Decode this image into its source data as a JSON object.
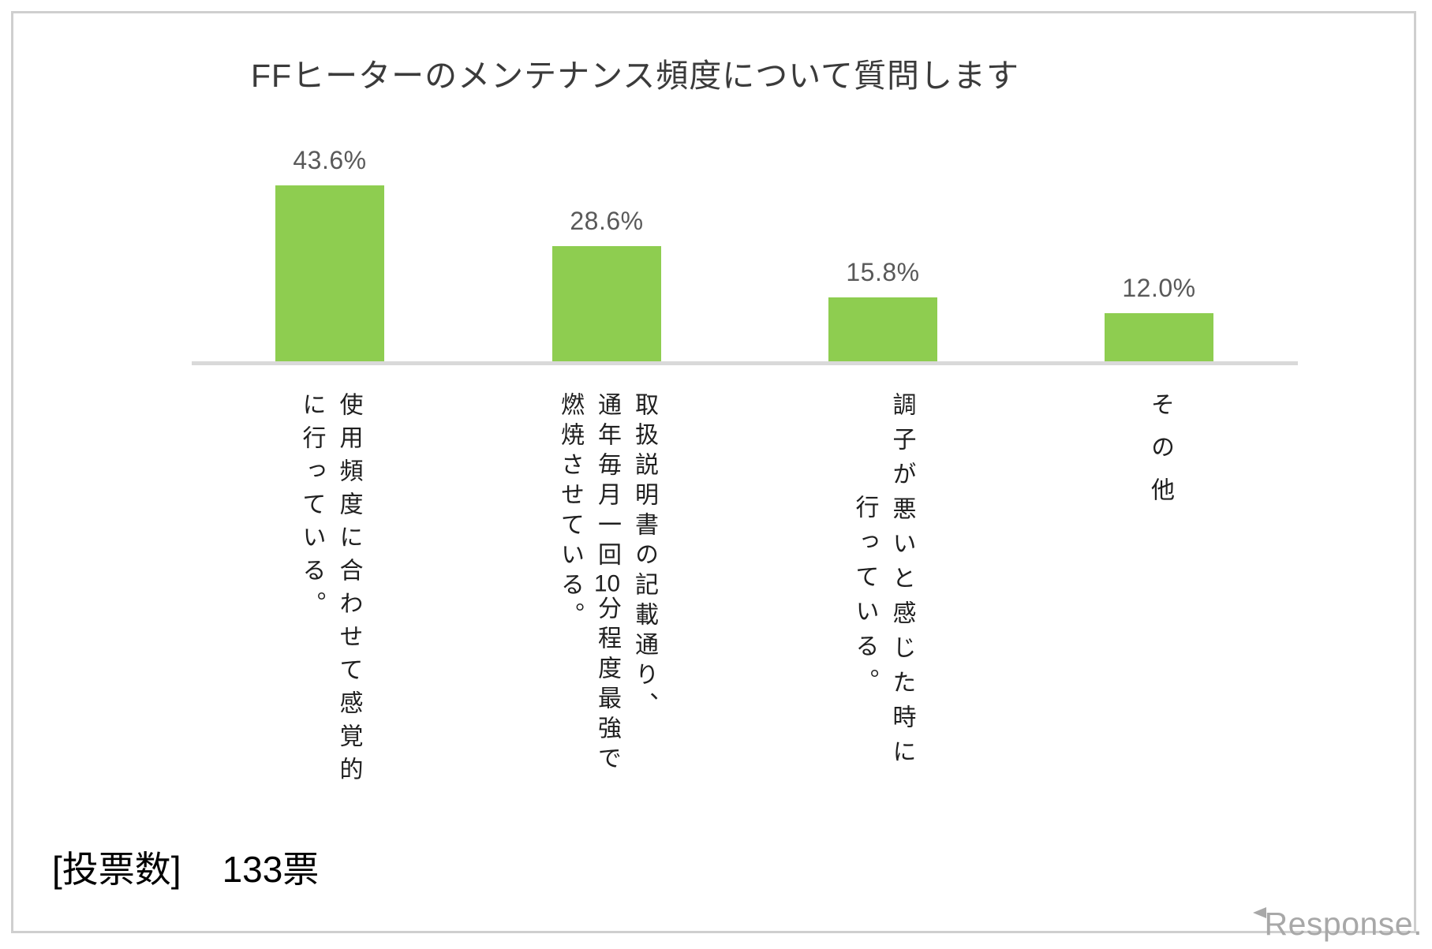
{
  "title": "FFヒーターのメンテナンス頻度について質問します",
  "votes": {
    "label": "[投票数]",
    "value": "133票"
  },
  "watermark": {
    "text": "esponse.",
    "full_brand": "Response."
  },
  "chart_data": {
    "type": "bar",
    "title": "FFヒーターのメンテナンス頻度について質問します",
    "categories": [
      "使用頻度に合わせて感覚的に行っている。",
      "取扱説明書の記載通り、通年毎月一回10分程度最強で燃焼させている。",
      "調子が悪いと感じた時に行っている。",
      "その他"
    ],
    "category_columns": [
      [
        "使用頻度に合わせて感覚的",
        "に行っている。"
      ],
      [
        "取扱説明書の記載通り、",
        [
          "通年毎月一回",
          "10",
          "分程度最強で"
        ],
        "燃焼させている。"
      ],
      [
        "調子が悪いと感じた時に",
        "行っている。"
      ],
      [
        "その他"
      ]
    ],
    "values": [
      43.6,
      28.6,
      15.8,
      12.0
    ],
    "value_labels": [
      "43.6%",
      "28.6%",
      "15.8%",
      "12.0%"
    ],
    "unit": "%",
    "total_votes": "133票",
    "bar_color": "#8ECD50",
    "axis_color": "#D9D9D9",
    "value_label_color": "#595959",
    "xlabel": "",
    "ylabel": "",
    "ylim": [
      0,
      50
    ],
    "grid": false,
    "legend": false,
    "orientation": "vertical",
    "category_label_writing_mode": "vertical-rl"
  }
}
